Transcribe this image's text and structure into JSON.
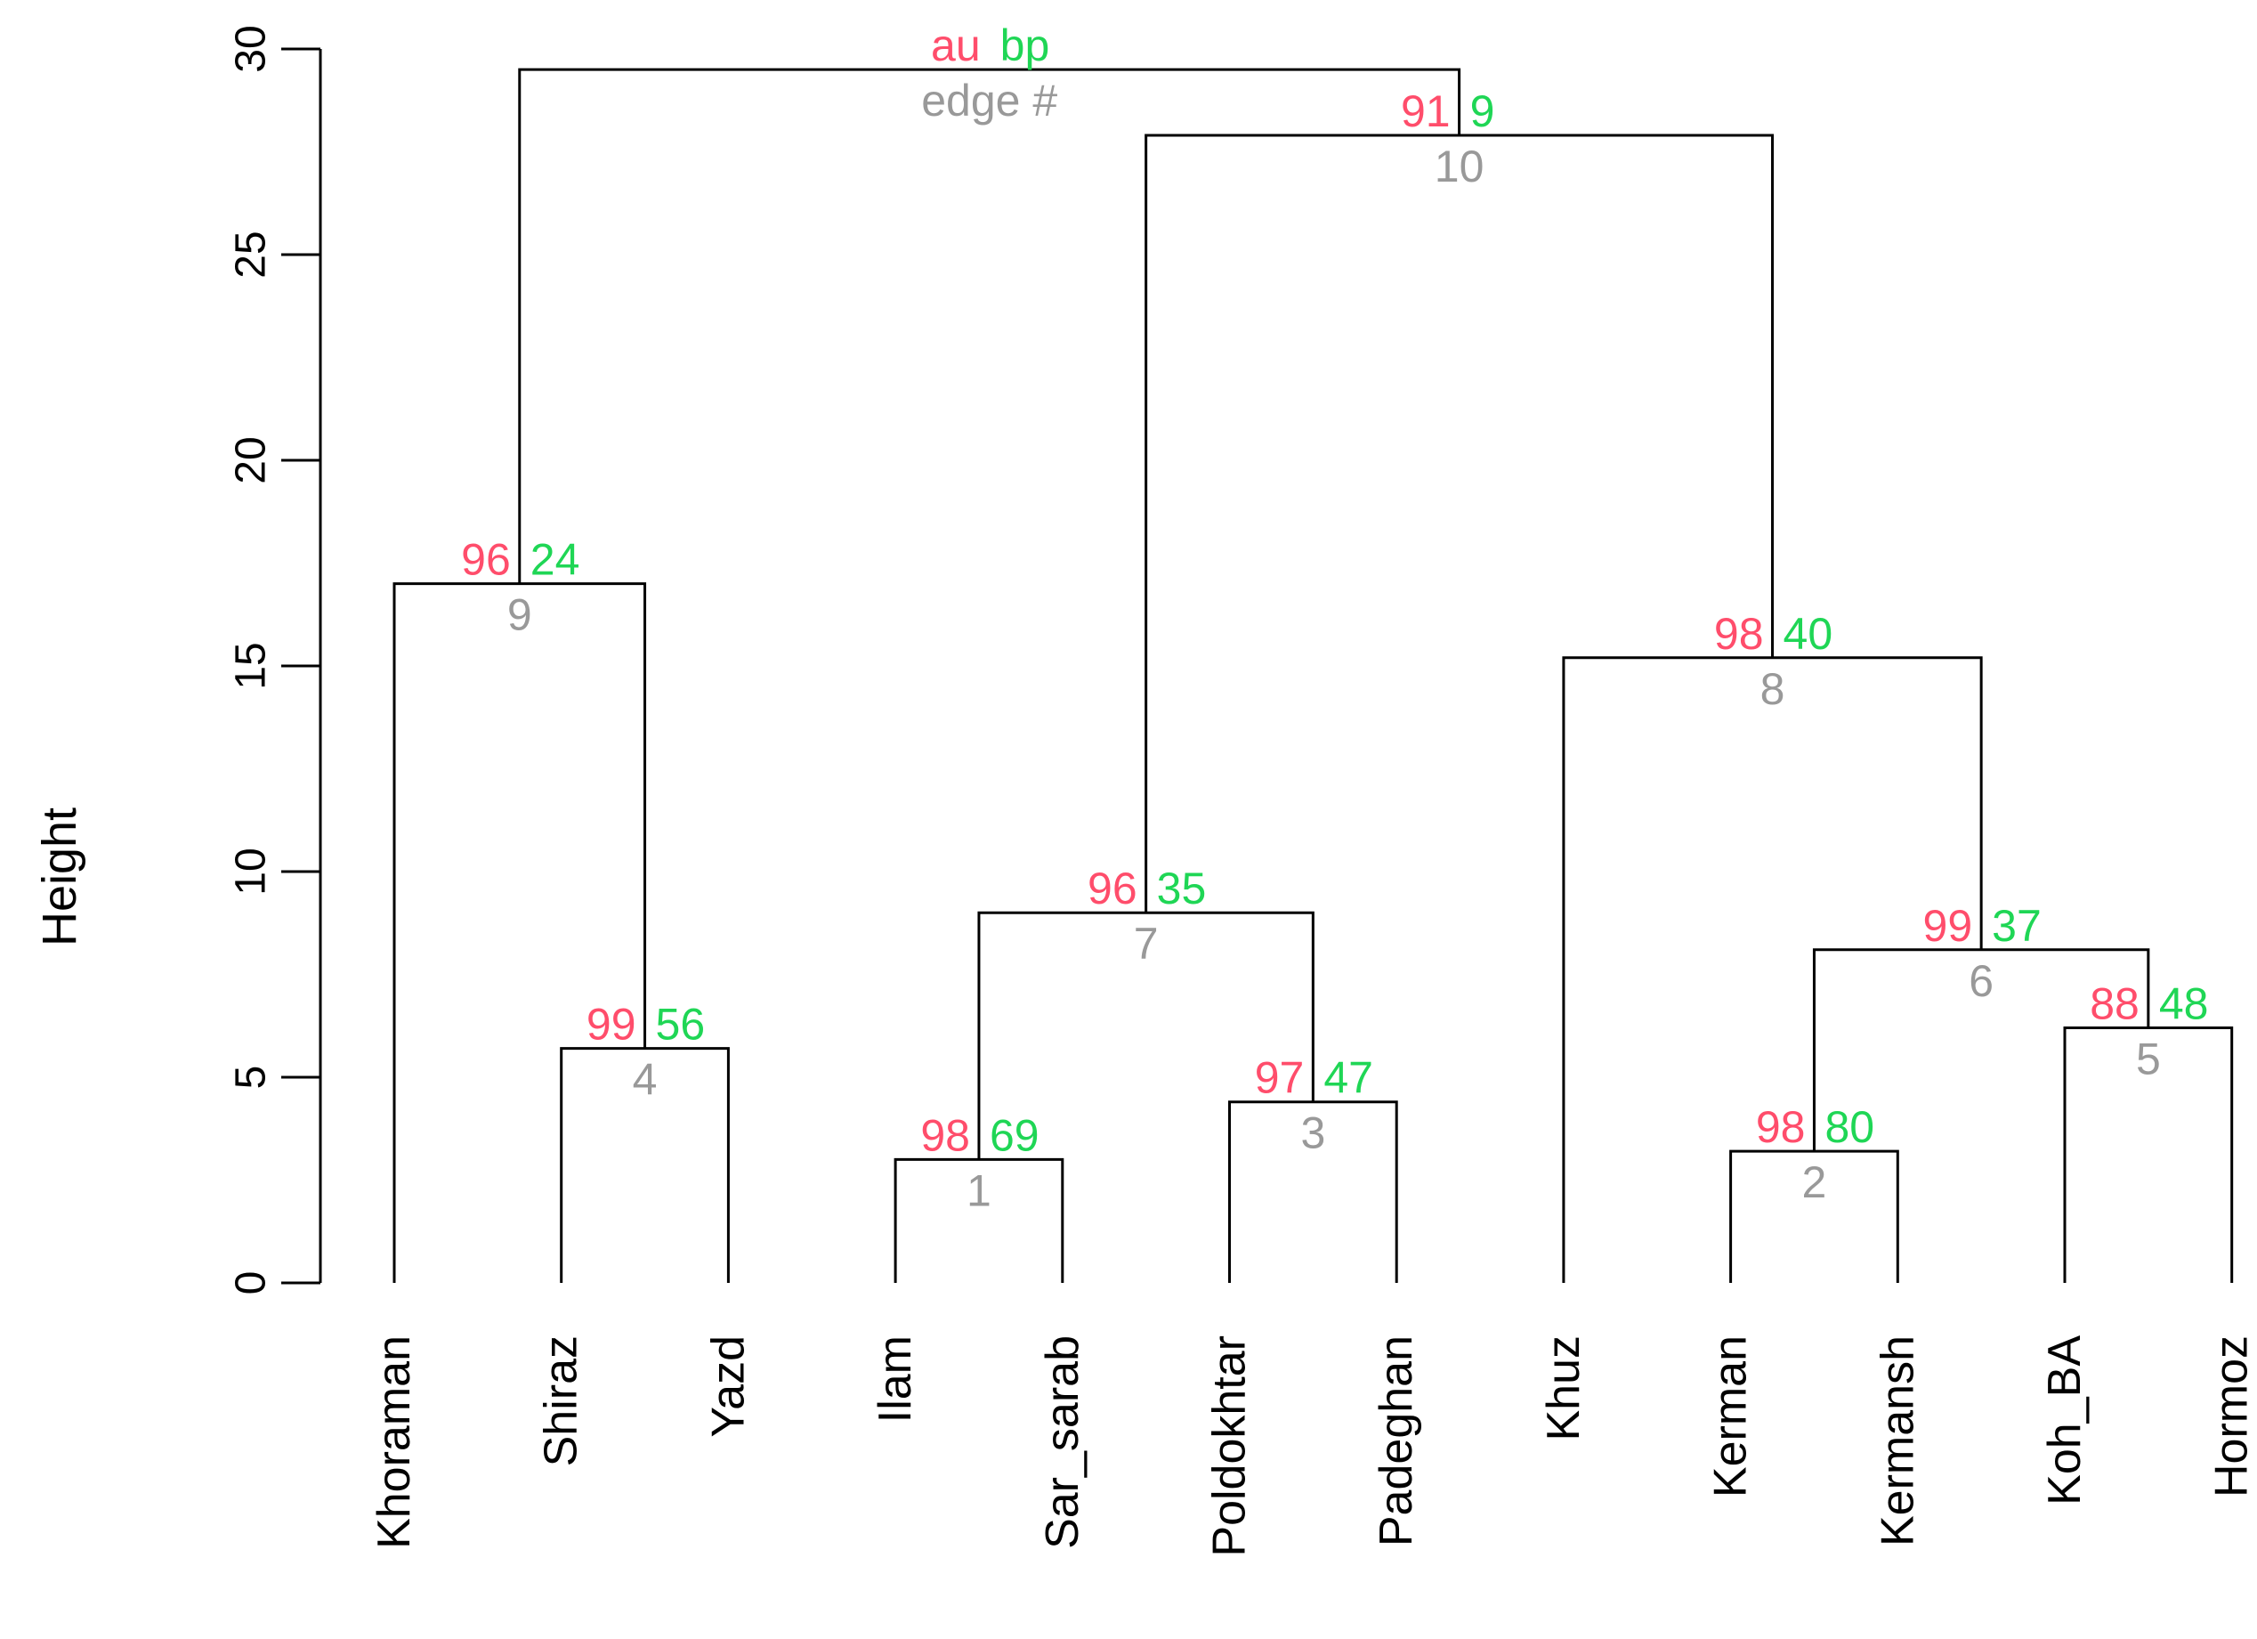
{
  "chart_data": {
    "type": "dendrogram",
    "ylabel": "Height",
    "ylim": [
      0,
      30
    ],
    "yticks": [
      0,
      5,
      10,
      15,
      20,
      25,
      30
    ],
    "legend": {
      "au": "au",
      "bp": "bp",
      "edge": "edge #"
    },
    "colors": {
      "au": "#ff4d6b",
      "bp": "#1fd655",
      "edge": "#999999"
    },
    "leaves": [
      "Khoraman",
      "Shiraz",
      "Yazd",
      "Ilam",
      "Sar_sarab",
      "Poldokhtar",
      "Padeghan",
      "Khuz",
      "Kerman",
      "Kermansh",
      "Koh_BA",
      "Hormoz"
    ],
    "merges": [
      {
        "edge": "1",
        "left": "L3",
        "right": "L4",
        "height": 3.0,
        "au": "98",
        "bp": "69"
      },
      {
        "edge": "2",
        "left": "L8",
        "right": "L9",
        "height": 3.2,
        "au": "98",
        "bp": "80"
      },
      {
        "edge": "3",
        "left": "L5",
        "right": "L6",
        "height": 4.4,
        "au": "97",
        "bp": "47"
      },
      {
        "edge": "4",
        "left": "L1",
        "right": "L2",
        "height": 5.7,
        "au": "99",
        "bp": "56"
      },
      {
        "edge": "5",
        "left": "L10",
        "right": "L11",
        "height": 6.2,
        "au": "88",
        "bp": "48"
      },
      {
        "edge": "6",
        "left": "N2",
        "right": "N5",
        "height": 8.1,
        "au": "99",
        "bp": "37"
      },
      {
        "edge": "7",
        "left": "N1",
        "right": "N3",
        "height": 9.0,
        "au": "96",
        "bp": "35"
      },
      {
        "edge": "8",
        "left": "L7",
        "right": "N6",
        "height": 15.2,
        "au": "98",
        "bp": "40"
      },
      {
        "edge": "9",
        "left": "L0",
        "right": "N4",
        "height": 17.0,
        "au": "96",
        "bp": "24"
      },
      {
        "edge": "10",
        "left": "N7",
        "right": "N8",
        "height": 27.9,
        "au": "91",
        "bp": "9"
      },
      {
        "edge": "",
        "left": "N9",
        "right": "N10",
        "height": 29.5,
        "au": "au",
        "bp": "bp",
        "root": true
      }
    ]
  }
}
